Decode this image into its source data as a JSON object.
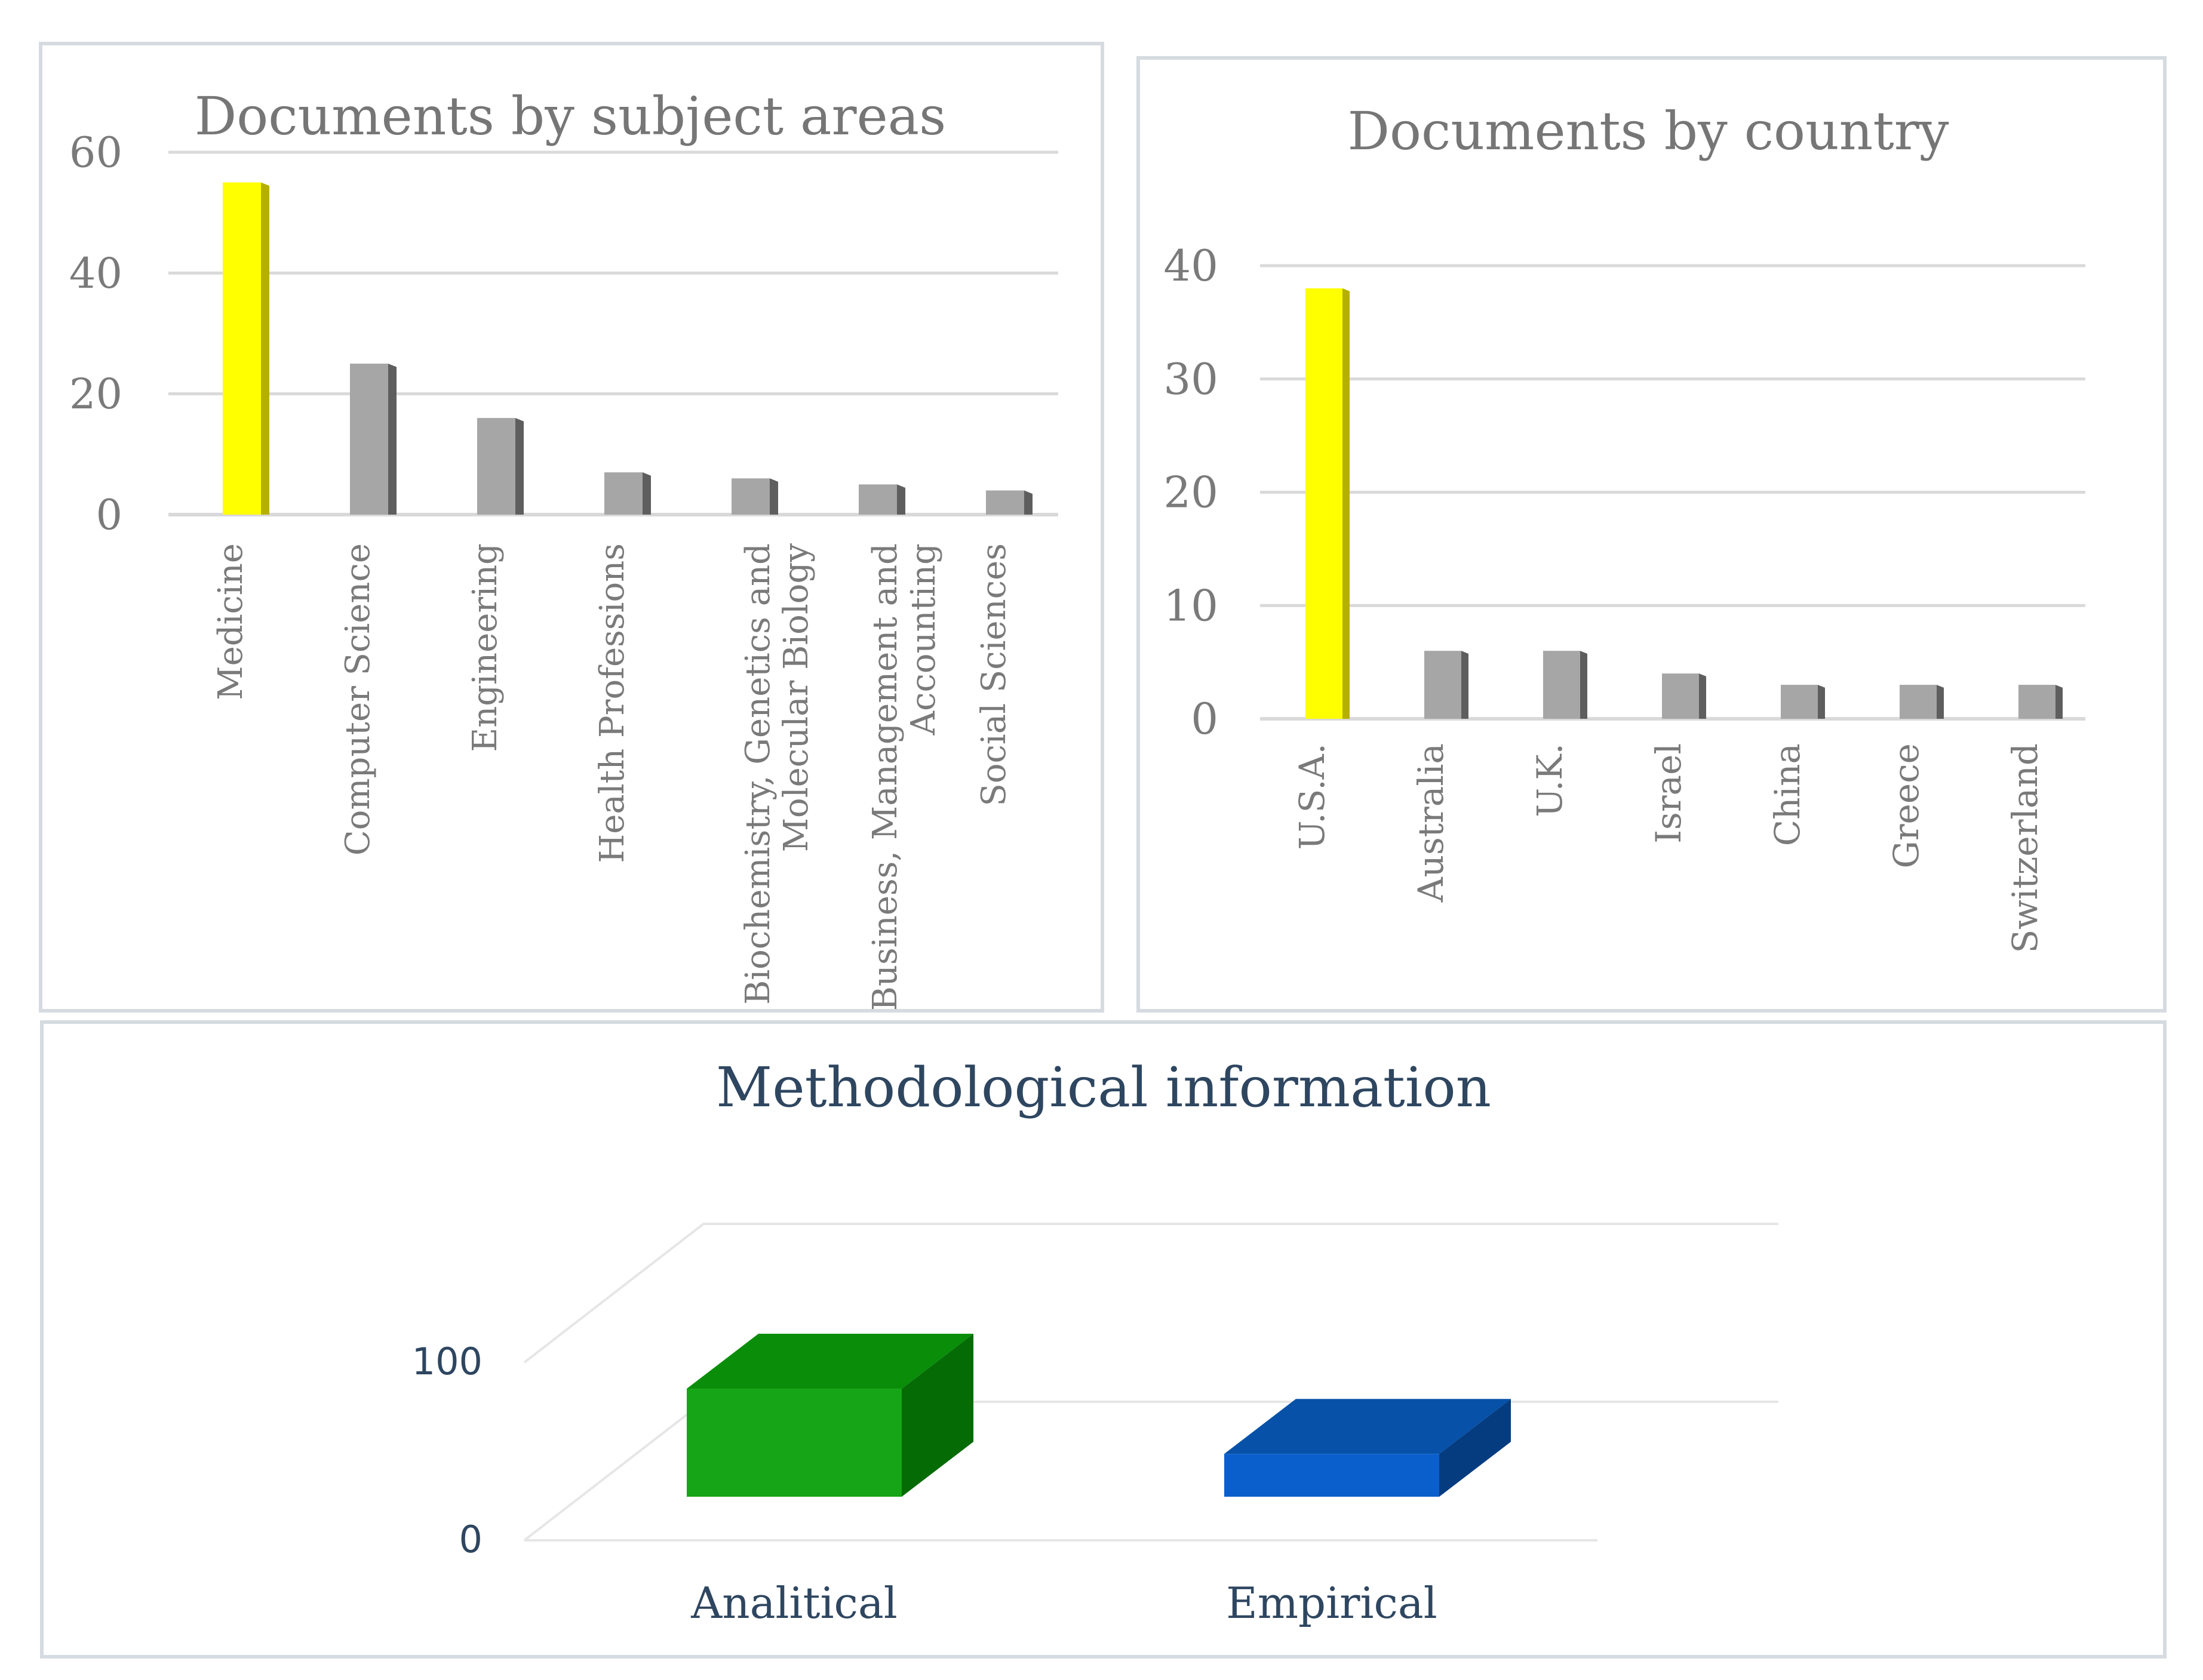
{
  "colors": {
    "highlight": "#ffff00",
    "highlight_side": "#b5b000",
    "bar": "#a6a6a6",
    "bar_side": "#5e5e5e",
    "grid": "#d9d9d9",
    "panel_border": "#d5dbe0",
    "title_gray": "#767676",
    "title_navy": "#2e4660",
    "green": "#16a516",
    "green_top": "#0a8e0a",
    "green_side": "#056b05",
    "blue": "#0b5fcc",
    "blue_top": "#0751a8",
    "blue_side": "#053c80"
  },
  "chart_data": [
    {
      "type": "bar",
      "title": "Documents by subject areas",
      "categories": [
        "Medicine",
        "Computer Science",
        "Engineering",
        "Health Professions",
        "Biochemistry, Genetics and Molecular Biology",
        "Business, Management and Accounting",
        "Social Sciences"
      ],
      "values": [
        55,
        25,
        16,
        7,
        6,
        5,
        4
      ],
      "highlight_index": 0,
      "ylim": [
        0,
        60
      ],
      "yticks": [
        "0",
        "20",
        "40",
        "60"
      ],
      "grid": true,
      "legend": "none"
    },
    {
      "type": "bar",
      "title": "Documents by country",
      "categories": [
        "U.S.A.",
        "Australia",
        "U.K.",
        "Israel",
        "China",
        "Greece",
        "Switzerland"
      ],
      "values": [
        38,
        6,
        6,
        4,
        3,
        3,
        3
      ],
      "highlight_index": 0,
      "ylim": [
        0,
        40
      ],
      "yticks": [
        "0",
        "10",
        "20",
        "30",
        "40"
      ],
      "grid": true,
      "legend": "none"
    },
    {
      "type": "bar",
      "title": "Methodological information",
      "categories": [
        "Analitical",
        "Empirical"
      ],
      "values": [
        58,
        23
      ],
      "ylim": [
        0,
        100
      ],
      "yticks": [
        "0",
        "100"
      ],
      "grid": true,
      "legend": "none"
    }
  ]
}
